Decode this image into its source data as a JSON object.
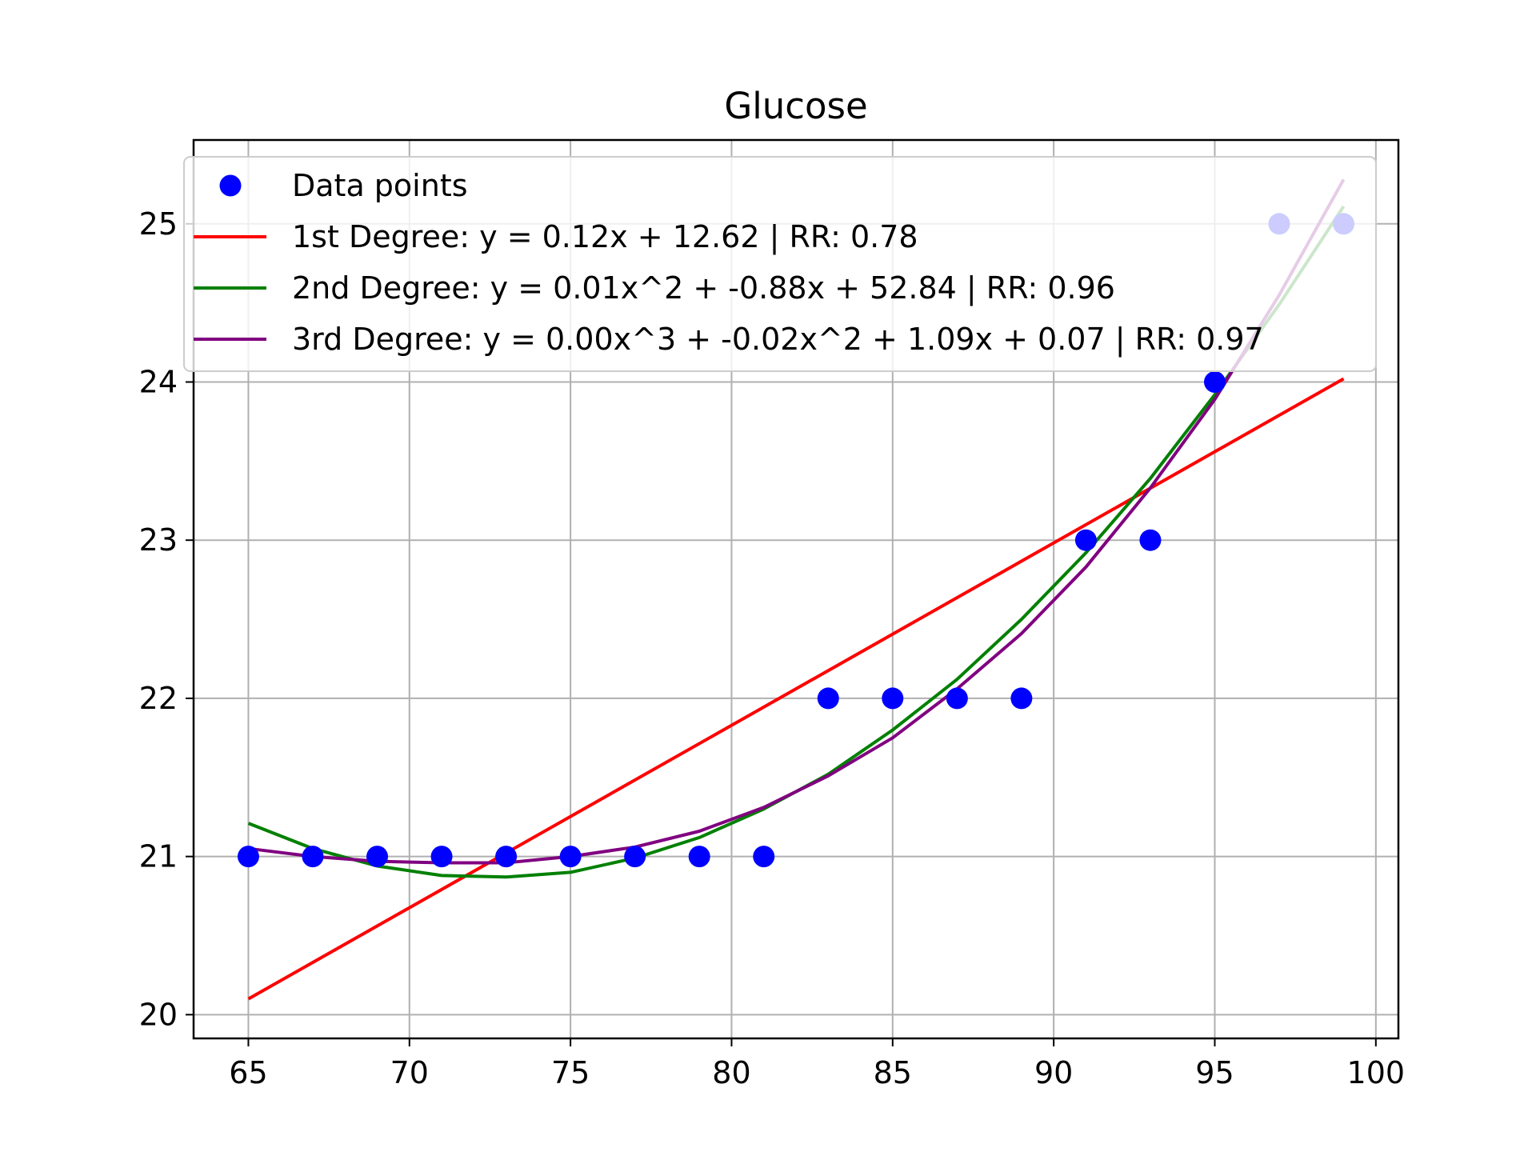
{
  "chart_data": {
    "type": "scatter",
    "title": "Glucose",
    "xlabel": "",
    "ylabel": "",
    "xlim": [
      63.3,
      100.7
    ],
    "ylim": [
      19.85,
      25.53
    ],
    "x_ticks": [
      65,
      70,
      75,
      80,
      85,
      90,
      95,
      100
    ],
    "y_ticks": [
      20,
      21,
      22,
      23,
      24,
      25
    ],
    "grid": true,
    "legend_position": "top-left",
    "points": {
      "name": "Data points",
      "color": "#0000ff",
      "x": [
        65,
        67,
        69,
        71,
        73,
        75,
        77,
        79,
        81,
        83,
        85,
        87,
        89,
        91,
        93,
        95,
        97,
        99
      ],
      "y": [
        21,
        21,
        21,
        21,
        21,
        21,
        21,
        21,
        21,
        22,
        22,
        22,
        22,
        23,
        23,
        24,
        25,
        25
      ]
    },
    "series": [
      {
        "name": "1st Degree: y = 0.12x + 12.62 | RR: 0.78",
        "color": "#ff0000",
        "x": [
          65,
          99
        ],
        "y": [
          20.1,
          24.02
        ]
      },
      {
        "name": "2nd Degree: y = 0.01x^2 + -0.88x + 52.84 | RR: 0.96",
        "color": "#008000",
        "x": [
          65,
          67,
          69,
          71,
          73,
          75,
          77,
          79,
          81,
          83,
          85,
          87,
          89,
          91,
          93,
          95,
          97,
          99
        ],
        "y": [
          21.21,
          21.05,
          20.94,
          20.88,
          20.87,
          20.9,
          20.99,
          21.12,
          21.3,
          21.52,
          21.8,
          22.12,
          22.5,
          22.92,
          23.39,
          23.92,
          24.49,
          25.11
        ]
      },
      {
        "name": "3rd Degree: y = 0.00x^3 + -0.02x^2 + 1.09x + 0.07 | RR: 0.97",
        "color": "#800080",
        "x": [
          65,
          67,
          69,
          71,
          73,
          75,
          77,
          79,
          81,
          83,
          85,
          87,
          89,
          91,
          93,
          95,
          97,
          99
        ],
        "y": [
          21.05,
          21.0,
          20.97,
          20.96,
          20.96,
          21.0,
          21.06,
          21.16,
          21.31,
          21.51,
          21.75,
          22.06,
          22.41,
          22.83,
          23.33,
          23.89,
          24.55,
          25.28
        ]
      }
    ]
  }
}
